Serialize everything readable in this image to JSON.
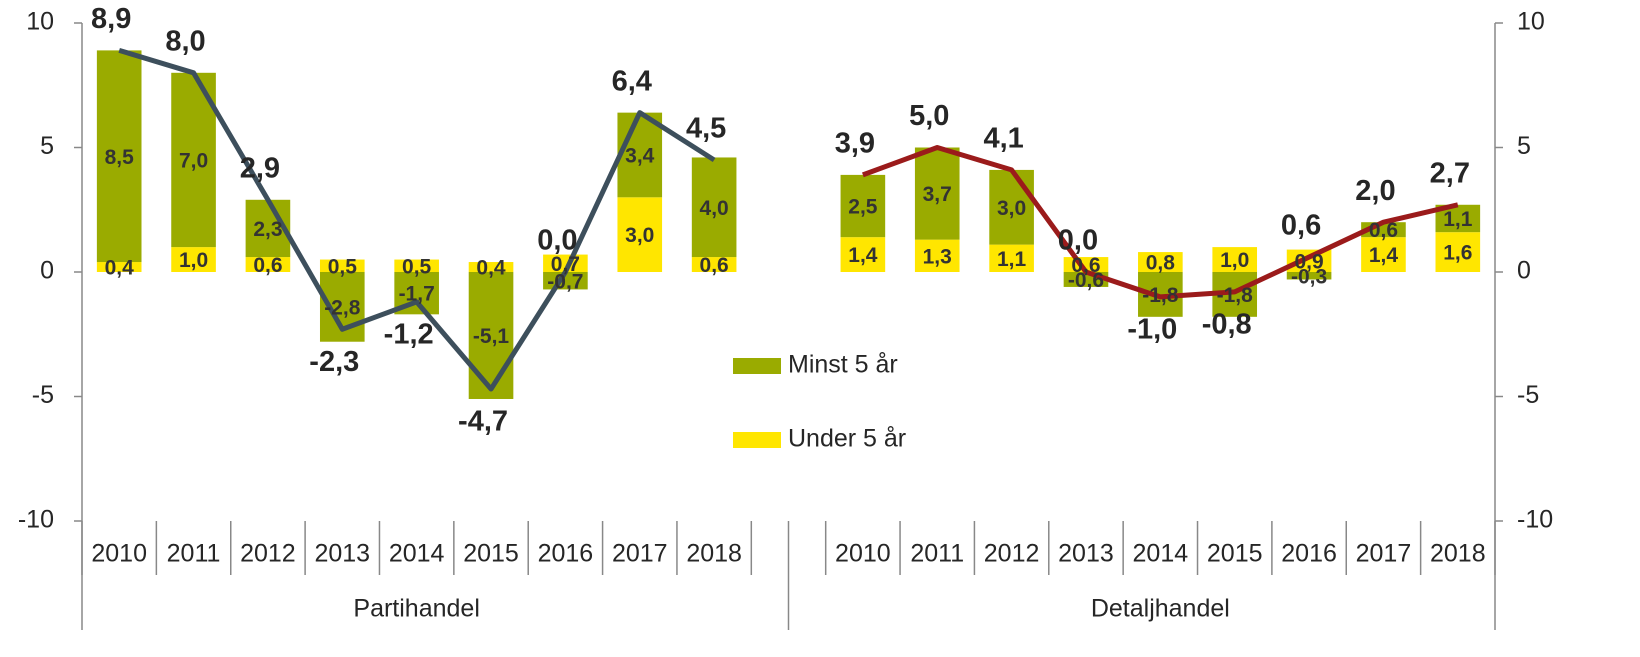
{
  "chart_data": {
    "type": "bar",
    "ylim": [
      -10,
      10
    ],
    "yticks": [
      -10,
      -5,
      0,
      5,
      10
    ],
    "y2lim": [
      -10,
      10
    ],
    "y2ticks": [
      -10,
      -5,
      0,
      5,
      10
    ],
    "groups": [
      {
        "name": "Partihandel",
        "categories": [
          "2010",
          "2011",
          "2012",
          "2013",
          "2014",
          "2015",
          "2016",
          "2017",
          "2018"
        ],
        "line_color": "#3d4f5c",
        "totals": [
          8.9,
          8.0,
          2.9,
          -2.3,
          -1.2,
          -4.7,
          0.0,
          6.4,
          4.5
        ],
        "total_labels": [
          "8,9",
          "8,0",
          "2,9",
          "-2,3",
          "-1,2",
          "-4,7",
          "0,0",
          "6,4",
          "4,5"
        ]
      },
      {
        "name": "Detaljhandel",
        "categories": [
          "2010",
          "2011",
          "2012",
          "2013",
          "2014",
          "2015",
          "2016",
          "2017",
          "2018"
        ],
        "line_color": "#9b1b1b",
        "totals": [
          3.9,
          5.0,
          4.1,
          0.0,
          -1.0,
          -0.8,
          0.6,
          2.0,
          2.7
        ],
        "total_labels": [
          "3,9",
          "5,0",
          "4,1",
          "0,0",
          "-1,0",
          "-0,8",
          "0,6",
          "2,0",
          "2,7"
        ]
      }
    ],
    "series": [
      {
        "name": "Under 5 år",
        "color": "#ffe600",
        "values": [
          [
            0.4,
            1.0,
            0.6,
            0.5,
            0.5,
            0.4,
            0.7,
            3.0,
            0.6
          ],
          [
            1.4,
            1.3,
            1.1,
            0.6,
            0.8,
            1.0,
            0.9,
            1.4,
            1.6
          ]
        ],
        "value_labels": [
          [
            "0,4",
            "1,0",
            "0,6",
            "0,5",
            "0,5",
            "0,4",
            "0,7",
            "3,0",
            "0,6"
          ],
          [
            "1,4",
            "1,3",
            "1,1",
            "0,6",
            "0,8",
            "1,0",
            "0,9",
            "1,4",
            "1,6"
          ]
        ]
      },
      {
        "name": "Minst 5 år",
        "color": "#9aab00",
        "values": [
          [
            8.5,
            7.0,
            2.3,
            -2.8,
            -1.7,
            -5.1,
            -0.7,
            3.4,
            4.0
          ],
          [
            2.5,
            3.7,
            3.0,
            -0.6,
            -1.8,
            -1.8,
            -0.3,
            0.6,
            1.1
          ]
        ],
        "value_labels": [
          [
            "8,5",
            "7,0",
            "2,3",
            "-2,8",
            "-1,7",
            "-5,1",
            "-0,7",
            "3,4",
            "4,0"
          ],
          [
            "2,5",
            "3,7",
            "3,0",
            "-0,6",
            "-1,8",
            "-1,8",
            "-0,3",
            "0,6",
            "1,1"
          ]
        ]
      }
    ]
  }
}
